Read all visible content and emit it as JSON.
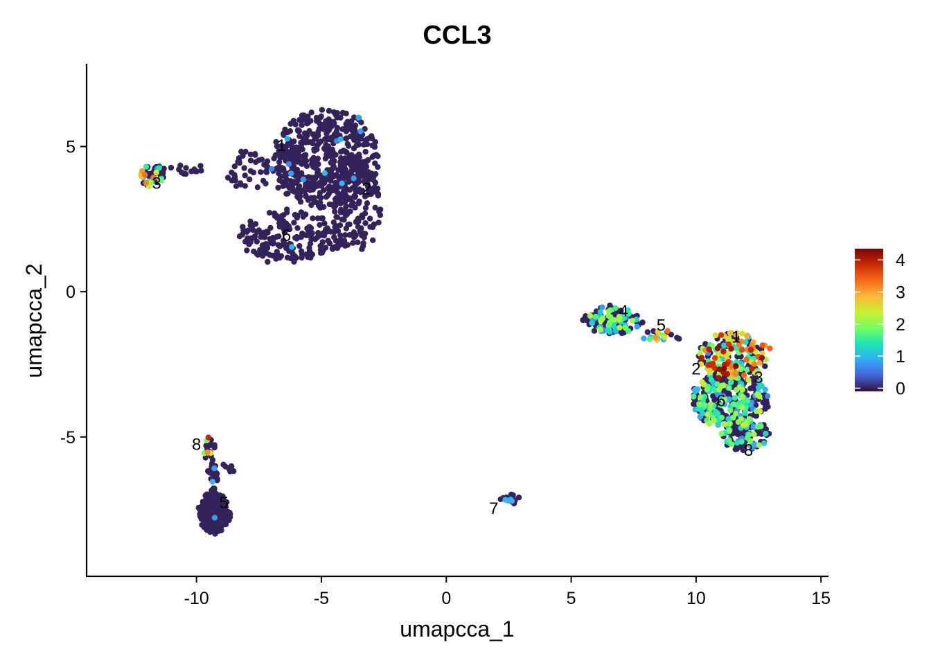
{
  "chart_data": {
    "type": "scatter",
    "title": "CCL3",
    "xlabel": "umapcca_1",
    "ylabel": "umapcca_2",
    "xlim": [
      -14.4,
      15.3
    ],
    "ylim": [
      -9.8,
      7.85
    ],
    "x_ticks": [
      -10,
      -5,
      0,
      5,
      10,
      15
    ],
    "y_ticks": [
      -5,
      0,
      5
    ],
    "x_tick_labels": [
      "-10",
      "-5",
      "0",
      "5",
      "10",
      "15"
    ],
    "y_tick_labels": [
      "-5",
      "0",
      "5"
    ],
    "grid": false,
    "legend_placement": "right",
    "colorbar": {
      "ticks": [
        0,
        1,
        2,
        3,
        4
      ],
      "tick_labels": [
        "0",
        "1",
        "2",
        "3",
        "4"
      ],
      "min": -0.1,
      "max": 4.35,
      "palette": [
        "#30123b",
        "#4662d8",
        "#35abf8",
        "#1be5b5",
        "#74fe5d",
        "#c9ef34",
        "#fbb938",
        "#f56918",
        "#c92903",
        "#7a0403"
      ]
    },
    "cluster_labels": [
      {
        "text": "1",
        "x": -6.6,
        "y": 5.0
      },
      {
        "text": "2",
        "x": -3.2,
        "y": 3.5
      },
      {
        "text": "3",
        "x": -11.6,
        "y": 3.7
      },
      {
        "text": "6",
        "x": -6.4,
        "y": 1.9
      },
      {
        "text": "4",
        "x": 7.1,
        "y": -0.7
      },
      {
        "text": "5",
        "x": 8.6,
        "y": -1.2
      },
      {
        "text": "1",
        "x": 11.6,
        "y": -1.6
      },
      {
        "text": "2",
        "x": 10.0,
        "y": -2.7
      },
      {
        "text": "3",
        "x": 12.5,
        "y": -3.0
      },
      {
        "text": "6",
        "x": 11.0,
        "y": -3.8
      },
      {
        "text": "8",
        "x": 12.1,
        "y": -5.5
      },
      {
        "text": "8",
        "x": -10.0,
        "y": -5.3
      },
      {
        "text": "5",
        "x": -8.9,
        "y": -7.3
      },
      {
        "text": "7",
        "x": 1.9,
        "y": -7.5
      }
    ],
    "regions": [
      {
        "name": "upper-left-main",
        "cx": -4.8,
        "cy": 4.6,
        "rx": 2.1,
        "ry": 1.7,
        "n": 520,
        "expr_rate": 0.02,
        "expr_max": 1.0
      },
      {
        "name": "upper-left-arm",
        "cx": -7.4,
        "cy": 4.2,
        "rx": 1.6,
        "ry": 0.7,
        "n": 60,
        "expr_rate": 0.02,
        "expr_max": 1.0
      },
      {
        "name": "upper-left-lower-lobe",
        "cx": -6.2,
        "cy": 1.9,
        "rx": 2.1,
        "ry": 0.9,
        "n": 190,
        "expr_rate": 0.02,
        "expr_max": 1.0
      },
      {
        "name": "upper-left-right-lobe",
        "cx": -3.6,
        "cy": 3.0,
        "rx": 1.0,
        "ry": 1.6,
        "n": 140,
        "expr_rate": 0.02,
        "expr_max": 1.0
      },
      {
        "name": "cluster-3-left",
        "cx": -11.8,
        "cy": 4.0,
        "rx": 0.55,
        "ry": 0.35,
        "n": 45,
        "expr_rate": 0.35,
        "expr_max": 3.4
      },
      {
        "name": "bridge-3",
        "cx": -10.4,
        "cy": 4.2,
        "rx": 0.9,
        "ry": 0.15,
        "n": 14,
        "expr_rate": 0.1,
        "expr_max": 3.0
      },
      {
        "name": "cluster-8-lower-left",
        "cx": -9.45,
        "cy": -5.6,
        "rx": 0.18,
        "ry": 0.65,
        "n": 26,
        "expr_rate": 0.2,
        "expr_max": 4.0
      },
      {
        "name": "cluster-5-lower-left",
        "cx": -9.3,
        "cy": -7.6,
        "rx": 0.6,
        "ry": 0.65,
        "n": 200,
        "expr_rate": 0.01,
        "expr_max": 1.0
      },
      {
        "name": "cluster-5-stem",
        "cx": -9.3,
        "cy": -6.4,
        "rx": 0.15,
        "ry": 0.6,
        "n": 24,
        "expr_rate": 0.03,
        "expr_max": 1.0
      },
      {
        "name": "cluster-5-right-bump",
        "cx": -8.7,
        "cy": -6.0,
        "rx": 0.2,
        "ry": 0.2,
        "n": 10,
        "expr_rate": 0.0,
        "expr_max": 0.5
      },
      {
        "name": "cluster-7",
        "cx": 2.5,
        "cy": -7.15,
        "rx": 0.35,
        "ry": 0.15,
        "n": 25,
        "expr_rate": 0.05,
        "expr_max": 1.0
      },
      {
        "name": "cluster-4",
        "cx": 6.6,
        "cy": -1.0,
        "rx": 1.2,
        "ry": 0.45,
        "n": 130,
        "expr_rate": 0.35,
        "expr_max": 2.2
      },
      {
        "name": "cluster-5-bridge",
        "cx": 8.6,
        "cy": -1.5,
        "rx": 0.8,
        "ry": 0.2,
        "n": 20,
        "expr_rate": 0.6,
        "expr_max": 3.4
      },
      {
        "name": "right-main-top",
        "cx": 11.5,
        "cy": -2.2,
        "rx": 1.4,
        "ry": 0.8,
        "n": 190,
        "expr_rate": 0.75,
        "expr_max": 4.3
      },
      {
        "name": "right-main-mid",
        "cx": 11.4,
        "cy": -3.7,
        "rx": 1.55,
        "ry": 0.95,
        "n": 320,
        "expr_rate": 0.4,
        "expr_max": 2.4
      },
      {
        "name": "right-main-bottom",
        "cx": 12.0,
        "cy": -4.9,
        "rx": 0.9,
        "ry": 0.55,
        "n": 110,
        "expr_rate": 0.35,
        "expr_max": 2.2
      }
    ]
  }
}
